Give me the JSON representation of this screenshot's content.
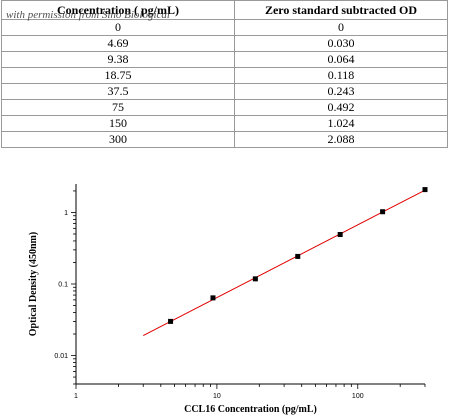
{
  "table": {
    "headers": [
      "Concentration ( pg/mL)",
      "Zero standard subtracted OD"
    ],
    "rows": [
      [
        "0",
        "0"
      ],
      [
        "4.69",
        "0.030"
      ],
      [
        "9.38",
        "0.064"
      ],
      [
        "18.75",
        "0.118"
      ],
      [
        "37.5",
        "0.243"
      ],
      [
        "75",
        "0.492"
      ],
      [
        "150",
        "1.024"
      ],
      [
        "300",
        "2.088"
      ]
    ],
    "watermark": "with permission from Sino Biological"
  },
  "chart_data": {
    "type": "scatter",
    "x_scale": "log",
    "y_scale": "log",
    "xlabel": "CCL16 Concentration (pg/mL)",
    "ylabel": "Optical Density (450nm)",
    "xlim": [
      1,
      300
    ],
    "ylim": [
      0.004,
      2.5
    ],
    "xticks": [
      {
        "value": 1,
        "label": "1"
      },
      {
        "value": 10,
        "label": "10"
      },
      {
        "value": 100,
        "label": "100"
      }
    ],
    "yticks": [
      {
        "value": 0.01,
        "label": "0.01"
      },
      {
        "value": 0.1,
        "label": "0.1"
      },
      {
        "value": 1,
        "label": "1"
      }
    ],
    "series": [
      {
        "x": [
          4.69,
          9.38,
          18.75,
          37.5,
          75,
          150,
          300
        ],
        "y": [
          0.03,
          0.064,
          0.118,
          0.243,
          0.492,
          1.024,
          2.088
        ],
        "marker_color": "#000000"
      }
    ],
    "fit_line": {
      "x": [
        3,
        300
      ],
      "y": [
        0.019,
        2.05
      ],
      "color": "#e00000"
    },
    "grid": false
  }
}
